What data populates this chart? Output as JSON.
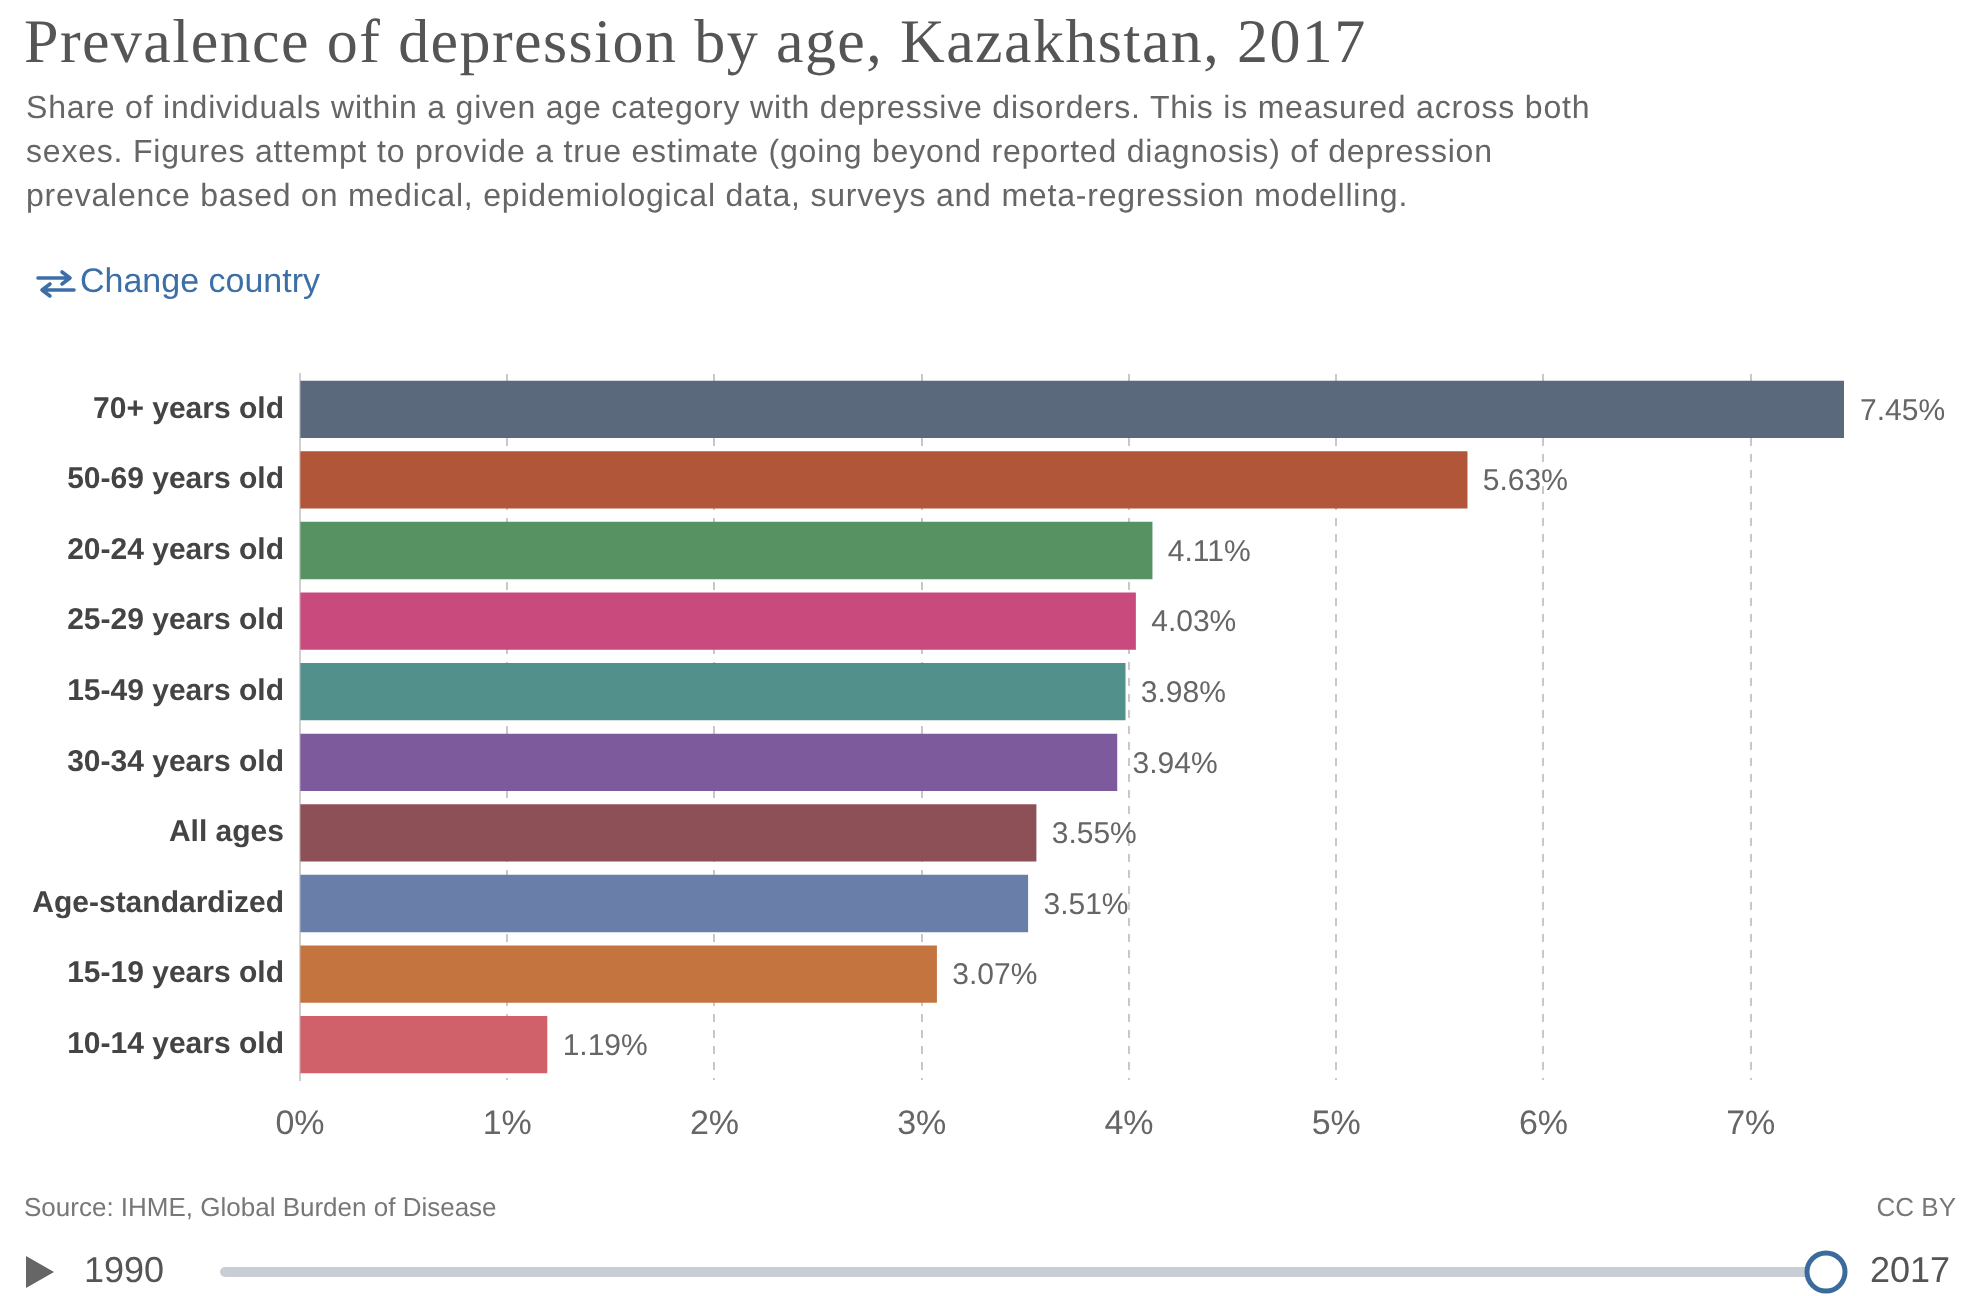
{
  "chart_data": {
    "type": "bar",
    "orientation": "horizontal",
    "title": "Prevalence of depression by age, Kazakhstan, 2017",
    "subtitle": "Share of individuals within a given age category with depressive disorders. This is measured across both sexes. Figures attempt to provide a true estimate (going beyond reported diagnosis) of depression prevalence based on medical, epidemiological data, surveys and meta-regression modelling.",
    "categories": [
      "70+ years old",
      "50-69 years old",
      "20-24 years old",
      "25-29 years old",
      "15-49 years old",
      "30-34 years old",
      "All ages",
      "Age-standardized",
      "15-19 years old",
      "10-14 years old"
    ],
    "values": [
      7.45,
      5.63,
      4.11,
      4.03,
      3.98,
      3.94,
      3.55,
      3.51,
      3.07,
      1.19
    ],
    "colors": [
      "#5a6a7c",
      "#b2563a",
      "#579262",
      "#c94a7c",
      "#52918b",
      "#7c5a9b",
      "#8c5056",
      "#6a7eaa",
      "#c4743f",
      "#d0606a"
    ],
    "value_labels": [
      "7.45%",
      "5.63%",
      "4.11%",
      "4.03%",
      "3.98%",
      "3.94%",
      "3.55%",
      "3.51%",
      "3.07%",
      "1.19%"
    ],
    "xlim": [
      0,
      7.45
    ],
    "xticks": [
      {
        "value": 0,
        "label": "0%"
      },
      {
        "value": 1,
        "label": "1%"
      },
      {
        "value": 2,
        "label": "2%"
      },
      {
        "value": 3,
        "label": "3%"
      },
      {
        "value": 4,
        "label": "4%"
      },
      {
        "value": 5,
        "label": "5%"
      },
      {
        "value": 6,
        "label": "6%"
      },
      {
        "value": 7,
        "label": "7%"
      }
    ],
    "grid": "x",
    "annotations": [
      "Change country",
      "Source: IHME, Global Burden of Disease",
      "CC BY",
      "1990",
      "2017"
    ]
  }
}
